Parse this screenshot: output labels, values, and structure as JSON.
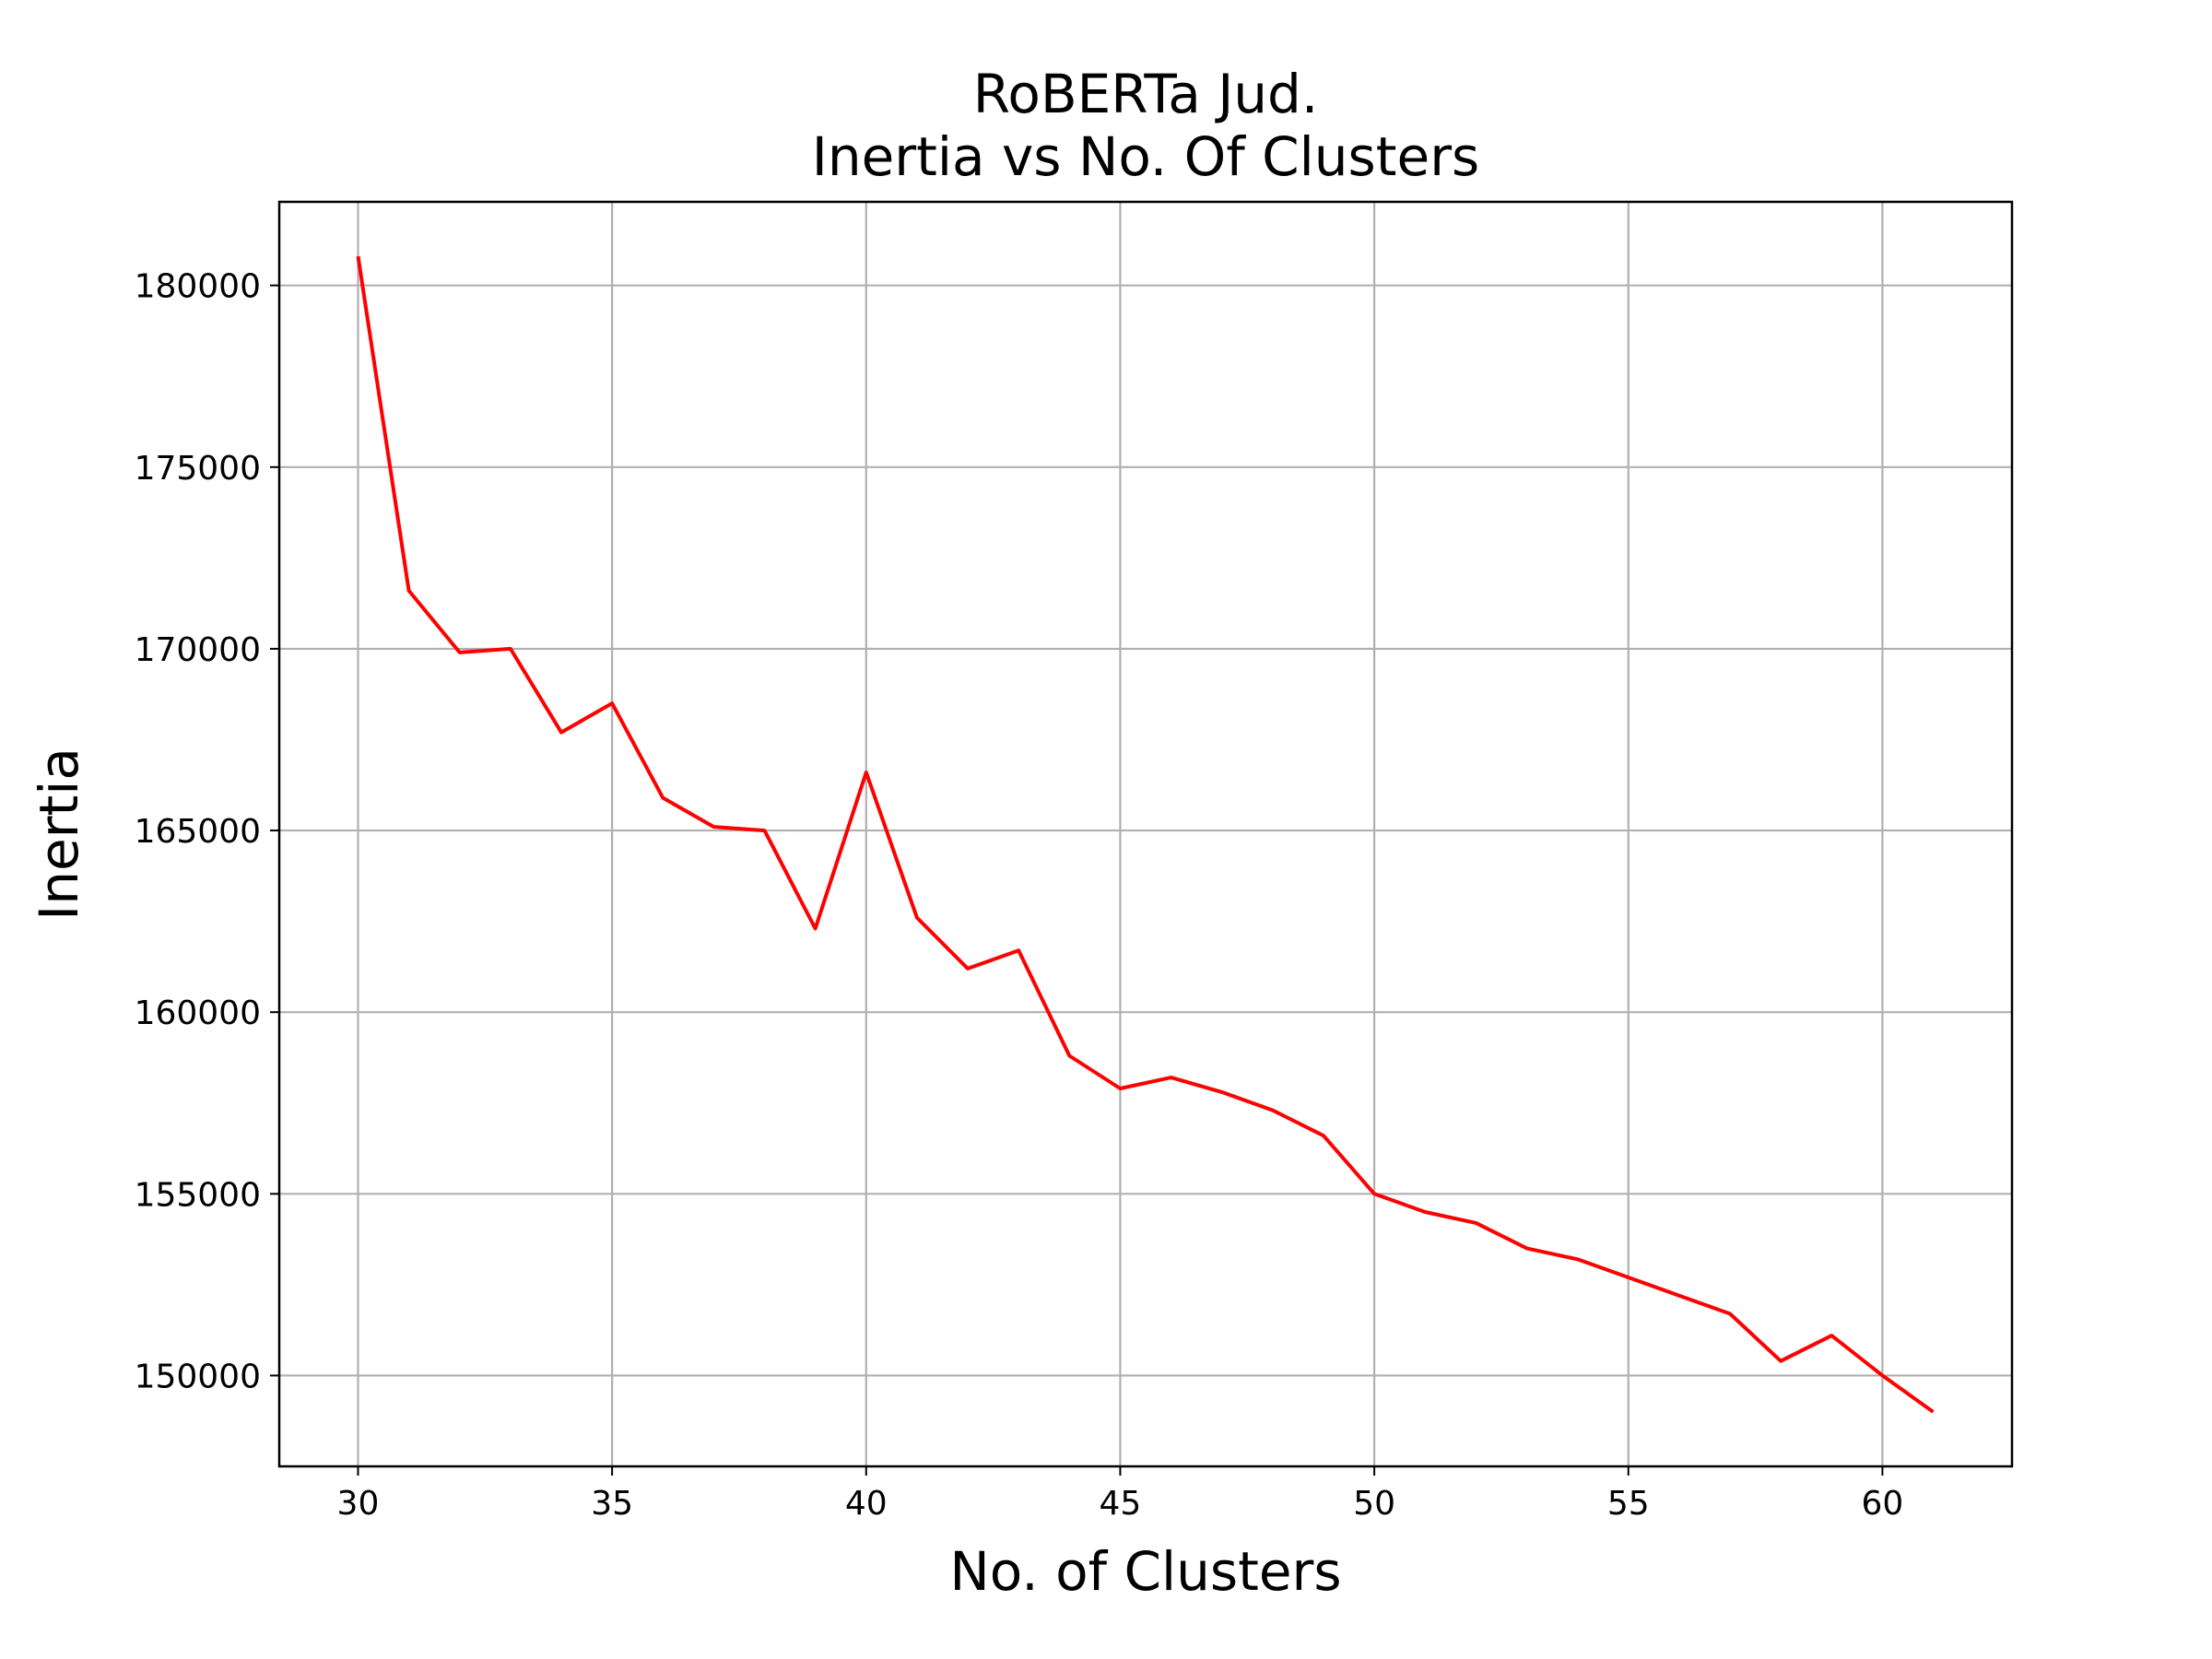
{
  "chart_data": {
    "type": "line",
    "title": [
      "RoBERTa Jud.",
      "Inertia vs No. Of Clusters"
    ],
    "xlabel": "No. of Clusters",
    "ylabel": "Inertia",
    "xlim": [
      28.45,
      62.55
    ],
    "ylim": [
      147500,
      182300
    ],
    "xticks": [
      30,
      35,
      40,
      45,
      50,
      55,
      60
    ],
    "yticks": [
      150000,
      155000,
      160000,
      165000,
      170000,
      175000,
      180000
    ],
    "grid": true,
    "series": [
      {
        "color": "#ff0000",
        "x": [
          30,
          31,
          32,
          33,
          34,
          35,
          36,
          37,
          38,
          39,
          40,
          41,
          42,
          43,
          44,
          45,
          46,
          47,
          48,
          49,
          50,
          51,
          52,
          53,
          54,
          55,
          56,
          57,
          58,
          59,
          60,
          61
        ],
        "y": [
          180800,
          171600,
          169900,
          170000,
          167700,
          168500,
          165900,
          165100,
          165000,
          162300,
          166600,
          162600,
          161200,
          161700,
          158800,
          157900,
          158200,
          157800,
          157300,
          156600,
          155000,
          154500,
          154200,
          153500,
          153200,
          152700,
          152200,
          151700,
          150400,
          151100,
          150000,
          149000
        ]
      }
    ]
  }
}
